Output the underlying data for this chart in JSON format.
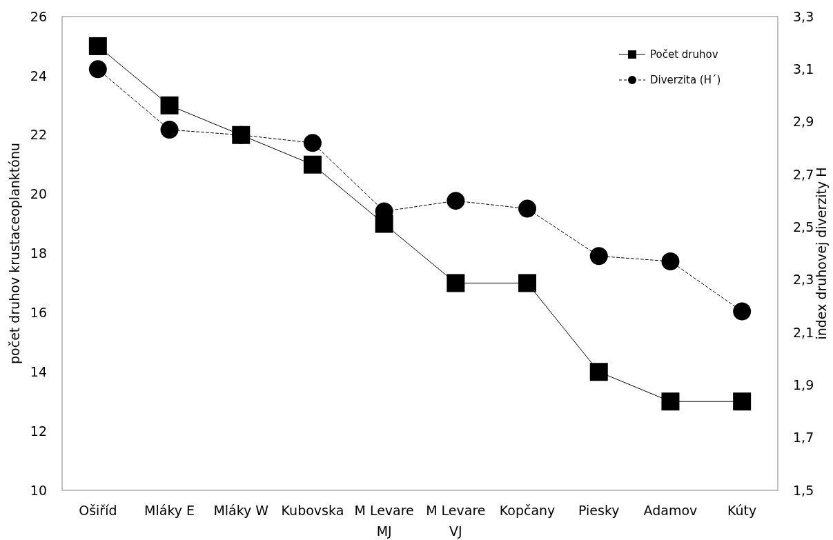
{
  "chart_data": {
    "type": "line",
    "ylabel": "počet druhov krustaceoplanktónu",
    "y2label": "index druhovej diverzity H",
    "categories": [
      "Ošiříd",
      "Mláky E",
      "Mláky W",
      "Kubovska",
      "M Levare MJ",
      "M Levare VJ",
      "Kopčany",
      "Piesky",
      "Adamov",
      "Kúty"
    ],
    "series": [
      {
        "name": "Počet druhov",
        "color": "#000000",
        "marker": "square",
        "line_style": "solid",
        "values": [
          25,
          23,
          22,
          21,
          19,
          17,
          17,
          14,
          13,
          13
        ]
      },
      {
        "name": "Diverzita (H´)",
        "color": "#000000",
        "marker": "circle",
        "line_style": "dashed",
        "axis": "y2",
        "values": [
          3.1,
          2.87,
          2.85,
          2.82,
          2.56,
          2.6,
          2.57,
          2.39,
          2.37,
          2.18
        ]
      }
    ],
    "ylim": [
      10,
      26
    ],
    "yticks": [
      10,
      12,
      14,
      16,
      18,
      20,
      22,
      24,
      26
    ],
    "y2lim": [
      1.5,
      3.3
    ],
    "y2ticks": [
      {
        "value": 1.5,
        "label": "1,5"
      },
      {
        "value": 1.7,
        "label": "1,7"
      },
      {
        "value": 1.9,
        "label": "1,9"
      },
      {
        "value": 2.1,
        "label": "2,1"
      },
      {
        "value": 2.3,
        "label": "2,3"
      },
      {
        "value": 2.5,
        "label": "2,5"
      },
      {
        "value": 2.7,
        "label": "2,7"
      },
      {
        "value": 2.9,
        "label": "2,9"
      },
      {
        "value": 3.1,
        "label": "3,1"
      },
      {
        "value": 3.3,
        "label": "3,3"
      }
    ],
    "grid": false,
    "legend": "top right"
  }
}
